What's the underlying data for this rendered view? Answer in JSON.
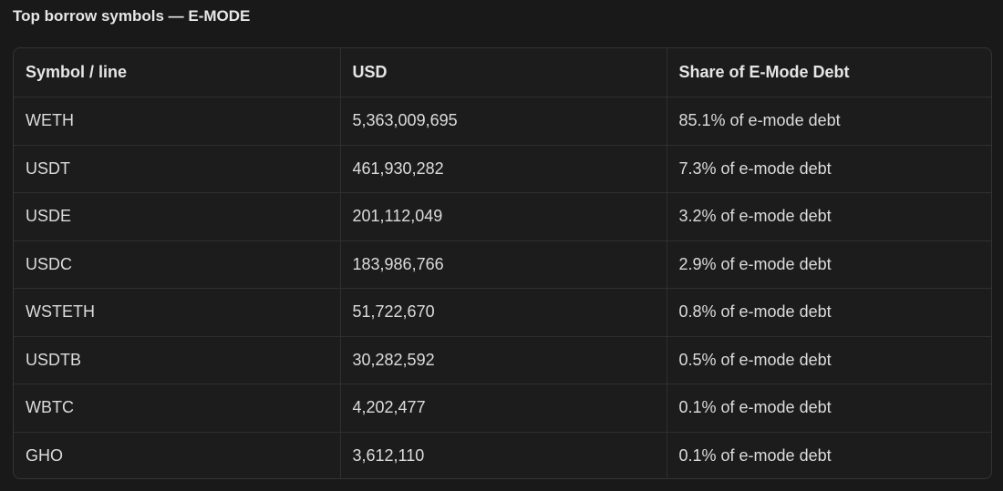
{
  "header": {
    "title": "Top borrow symbols — E-MODE"
  },
  "table": {
    "headers": [
      "Symbol / line",
      "USD",
      "Share of E-Mode Debt"
    ],
    "rows": [
      [
        "WETH",
        "5,363,009,695",
        "85.1% of e-mode debt"
      ],
      [
        "USDT",
        "461,930,282",
        "7.3% of e-mode debt"
      ],
      [
        "USDE",
        "201,112,049",
        "3.2% of e-mode debt"
      ],
      [
        "USDC",
        "183,986,766",
        "2.9% of e-mode debt"
      ],
      [
        "WSTETH",
        "51,722,670",
        "0.8% of e-mode debt"
      ],
      [
        "USDTB",
        "30,282,592",
        "0.5% of e-mode debt"
      ],
      [
        "WBTC",
        "4,202,477",
        "0.1% of e-mode debt"
      ],
      [
        "GHO",
        "3,612,110",
        "0.1% of e-mode debt"
      ]
    ]
  }
}
